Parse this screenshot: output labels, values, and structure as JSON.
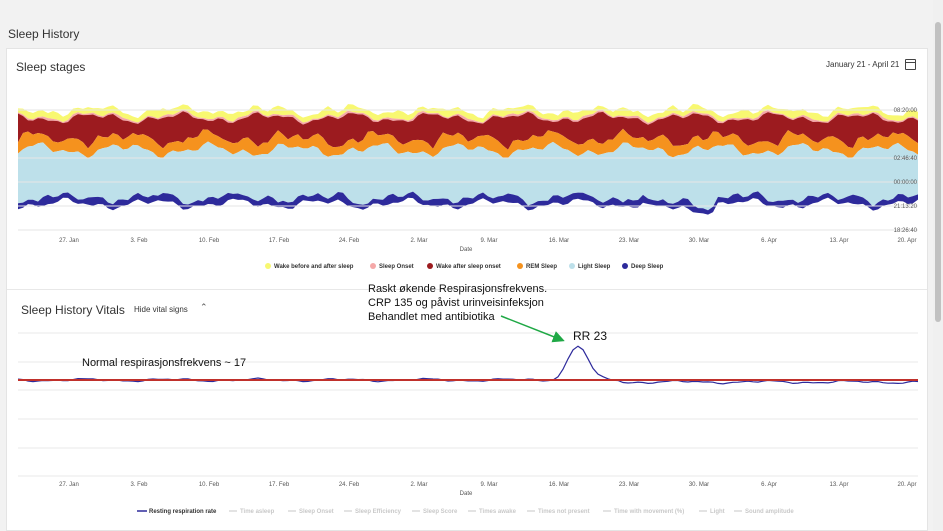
{
  "page": {
    "title": "Sleep History"
  },
  "stages": {
    "title": "Sleep stages",
    "date_range": "January 21 - April 21",
    "xlabel": "Date",
    "y_ticks": [
      "08:20:00",
      "02:46:40",
      "00:00:00",
      "21:13:20",
      "18:26:40"
    ],
    "x_ticks": [
      "27. Jan",
      "3. Feb",
      "10. Feb",
      "17. Feb",
      "24. Feb",
      "2. Mar",
      "9. Mar",
      "16. Mar",
      "23. Mar",
      "30. Mar",
      "6. Apr",
      "13. Apr",
      "20. Apr"
    ],
    "legend": [
      {
        "label": "Wake before and after sleep",
        "color": "#f8f871"
      },
      {
        "label": "Sleep Onset",
        "color": "#f5a8a8"
      },
      {
        "label": "Wake after sleep onset",
        "color": "#9c1b1f"
      },
      {
        "label": "REM Sleep",
        "color": "#f5921e"
      },
      {
        "label": "Light Sleep",
        "color": "#bde0ea"
      },
      {
        "label": "Deep Sleep",
        "color": "#2d2a9b"
      }
    ]
  },
  "vitals": {
    "title": "Sleep History Vitals",
    "toggle_label": "Hide vital signs",
    "xlabel": "Date",
    "x_ticks": [
      "27. Jan",
      "3. Feb",
      "10. Feb",
      "17. Feb",
      "24. Feb",
      "2. Mar",
      "9. Mar",
      "16. Mar",
      "23. Mar",
      "30. Mar",
      "6. Apr",
      "13. Apr",
      "20. Apr"
    ],
    "legend_active": {
      "label": "Resting respiration rate",
      "color": "#2d2a9b"
    },
    "legend_inactive": [
      "Time asleep",
      "Sleep Onset",
      "Sleep Efficiency",
      "Sleep Score",
      "Times awake",
      "Times not present",
      "Time with movement (%)",
      "Light",
      "Sound amplitude"
    ],
    "baseline_color": "#c0302b",
    "baseline_value": 17,
    "peak_value": 23
  },
  "annotations": {
    "normal": "Normal respirasjonsfrekvens ~ 17",
    "event_line1": "Raskt økende Respirasjonsfrekvens.",
    "event_line2": "CRP 135 og påvist urinveisinfeksjon",
    "event_line3": "Behandlet med antibiotika",
    "peak": "RR 23",
    "arrow_color": "#1fa845"
  }
}
